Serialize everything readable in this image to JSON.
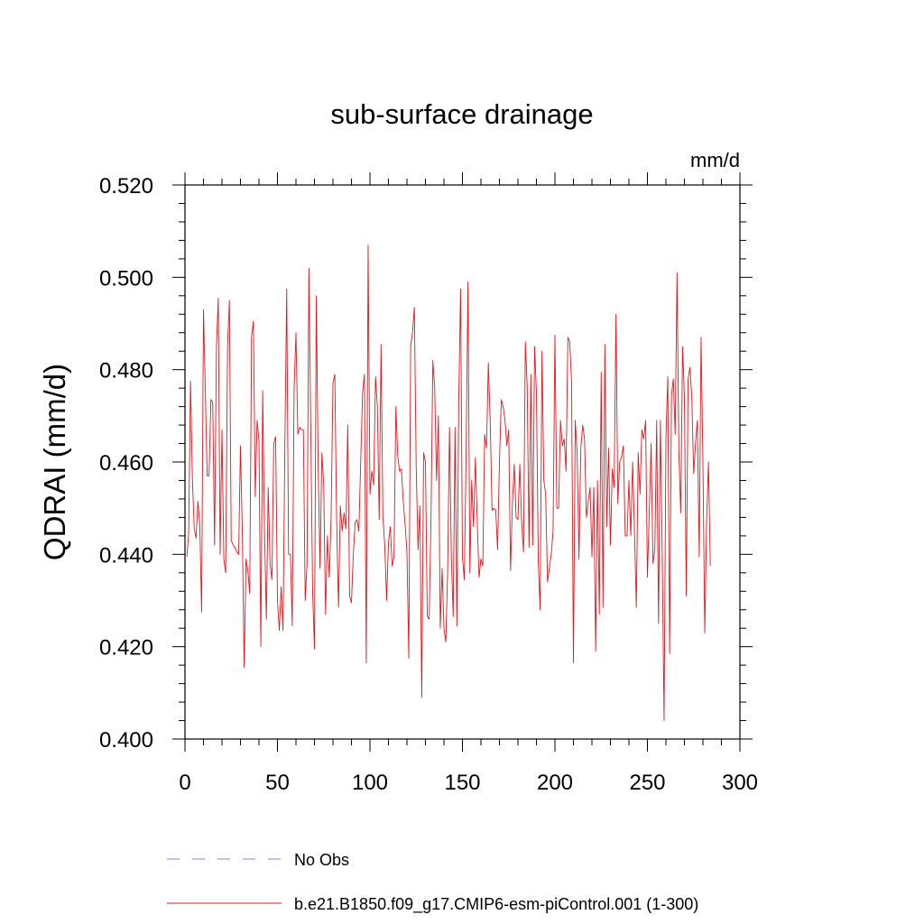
{
  "chart_data": {
    "type": "line",
    "title": "sub-surface drainage",
    "units_label": "mm/d",
    "ylabel": "QDRAI  (mm/d)",
    "xlabel": "",
    "xlim": [
      0,
      300
    ],
    "ylim": [
      0.4,
      0.52
    ],
    "x_ticks": [
      0,
      50,
      100,
      150,
      200,
      250,
      300
    ],
    "x_tick_labels": [
      "0",
      "50",
      "100",
      "150",
      "200",
      "250",
      "300"
    ],
    "y_ticks": [
      0.4,
      0.42,
      0.44,
      0.46,
      0.48,
      0.5,
      0.52
    ],
    "y_tick_labels": [
      "0.400",
      "0.420",
      "0.440",
      "0.460",
      "0.480",
      "0.500",
      "0.520"
    ],
    "grid": false,
    "legend_position": "bottom-center",
    "colors": {
      "series": "#e8141c",
      "obs": "#8a86c8"
    },
    "legend": [
      {
        "label": "No Obs",
        "style": "dashed",
        "color": "#8a86c8"
      },
      {
        "label": "b.e21.B1850.f09_g17.CMIP6-esm-piControl.001 (1-300)",
        "style": "solid",
        "color": "#e8141c"
      }
    ],
    "series": [
      {
        "name": "b.e21.B1850.f09_g17.CMIP6-esm-piControl.001 (1-300)",
        "x_start": 1,
        "values": [
          0.4395,
          0.4445,
          0.4775,
          0.4565,
          0.4455,
          0.4435,
          0.4515,
          0.4465,
          0.4275,
          0.493,
          0.4755,
          0.457,
          0.457,
          0.4735,
          0.473,
          0.442,
          0.485,
          0.4955,
          0.44,
          0.467,
          0.439,
          0.436,
          0.485,
          0.495,
          0.443,
          0.442,
          0.4415,
          0.4405,
          0.44,
          0.4635,
          0.445,
          0.4155,
          0.439,
          0.4365,
          0.4315,
          0.487,
          0.4905,
          0.4525,
          0.469,
          0.4645,
          0.42,
          0.4755,
          0.445,
          0.426,
          0.4545,
          0.438,
          0.4345,
          0.464,
          0.4655,
          0.43,
          0.4235,
          0.433,
          0.4235,
          0.464,
          0.4975,
          0.44,
          0.44,
          0.4245,
          0.476,
          0.488,
          0.466,
          0.4675,
          0.467,
          0.467,
          0.43,
          0.438,
          0.502,
          0.467,
          0.432,
          0.4195,
          0.496,
          0.459,
          0.437,
          0.462,
          0.455,
          0.427,
          0.444,
          0.435,
          0.448,
          0.477,
          0.479,
          0.447,
          0.4285,
          0.4505,
          0.445,
          0.449,
          0.4455,
          0.468,
          0.431,
          0.4295,
          0.44,
          0.447,
          0.4475,
          0.445,
          0.46,
          0.475,
          0.479,
          0.4165,
          0.507,
          0.453,
          0.458,
          0.455,
          0.4785,
          0.472,
          0.4475,
          0.4855,
          0.448,
          0.442,
          0.43,
          0.4425,
          0.446,
          0.4375,
          0.4395,
          0.472,
          0.4615,
          0.458,
          0.4585,
          0.4515,
          0.4465,
          0.4405,
          0.4175,
          0.485,
          0.488,
          0.4935,
          0.459,
          0.441,
          0.4505,
          0.409,
          0.462,
          0.46,
          0.4265,
          0.426,
          0.448,
          0.482,
          0.476,
          0.456,
          0.47,
          0.424,
          0.437,
          0.424,
          0.421,
          0.4365,
          0.4675,
          0.4395,
          0.4265,
          0.4675,
          0.4245,
          0.4735,
          0.4975,
          0.4395,
          0.4345,
          0.462,
          0.499,
          0.436,
          0.456,
          0.446,
          0.461,
          0.447,
          0.435,
          0.439,
          0.4375,
          0.466,
          0.463,
          0.4815,
          0.469,
          0.4495,
          0.45,
          0.4495,
          0.441,
          0.46,
          0.4735,
          0.472,
          0.469,
          0.4635,
          0.467,
          0.4365,
          0.451,
          0.4595,
          0.448,
          0.4475,
          0.4595,
          0.447,
          0.4405,
          0.486,
          0.4765,
          0.4415,
          0.479,
          0.442,
          0.485,
          0.475,
          0.4385,
          0.428,
          0.484,
          0.456,
          0.453,
          0.434,
          0.437,
          0.44,
          0.445,
          0.4875,
          0.45,
          0.45,
          0.469,
          0.4635,
          0.465,
          0.458,
          0.487,
          0.486,
          0.477,
          0.4165,
          0.469,
          0.462,
          0.439,
          0.463,
          0.468,
          0.465,
          0.448,
          0.4515,
          0.4545,
          0.4395,
          0.4545,
          0.419,
          0.456,
          0.427,
          0.4795,
          0.4285,
          0.4855,
          0.446,
          0.463,
          0.442,
          0.4585,
          0.4545,
          0.492,
          0.451,
          0.46,
          0.461,
          0.4635,
          0.444,
          0.444,
          0.456,
          0.444,
          0.46,
          0.445,
          0.4285,
          0.462,
          0.453,
          0.467,
          0.465,
          0.469,
          0.435,
          0.449,
          0.464,
          0.438,
          0.441,
          0.469,
          0.425,
          0.469,
          0.44,
          0.404,
          0.465,
          0.4785,
          0.4185,
          0.4745,
          0.478,
          0.466,
          0.501,
          0.462,
          0.449,
          0.485,
          0.474,
          0.431,
          0.478,
          0.4805,
          0.474,
          0.4575,
          0.464,
          0.469,
          0.4395,
          0.487,
          0.46,
          0.423,
          0.447,
          0.46,
          0.4375
        ]
      }
    ]
  }
}
